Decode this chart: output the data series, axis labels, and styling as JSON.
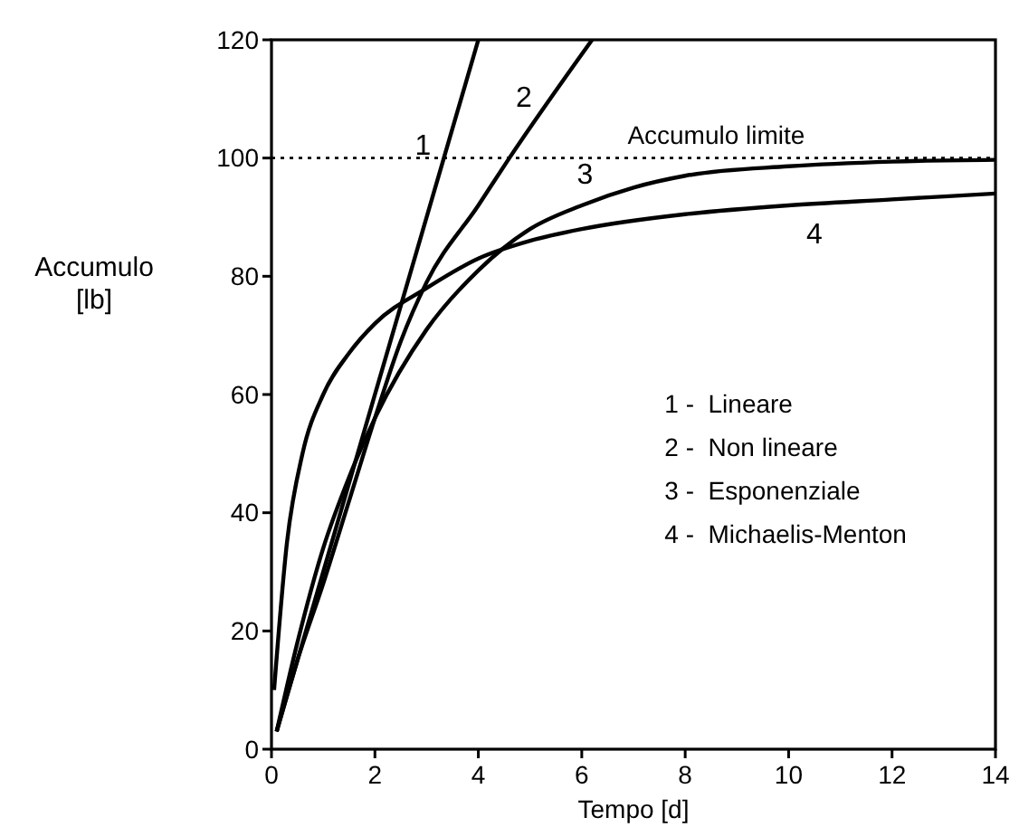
{
  "chart_data": {
    "type": "line",
    "xlabel": "Tempo [d]",
    "ylabel": "Accumulo [lb]",
    "xlim": [
      0,
      14
    ],
    "ylim": [
      0,
      120
    ],
    "xticks": [
      0,
      2,
      4,
      6,
      8,
      10,
      12,
      14
    ],
    "yticks": [
      0,
      20,
      40,
      60,
      80,
      100,
      120
    ],
    "grid": false,
    "marker": "none",
    "line_style": "solid",
    "series": [
      {
        "name": "1",
        "color": "#000000",
        "x": [
          0.1,
          4.0
        ],
        "values": [
          3,
          120
        ]
      },
      {
        "name": "2",
        "color": "#000000",
        "x": [
          0.1,
          0.5,
          1,
          1.5,
          2,
          2.5,
          3,
          4,
          4.6,
          6.2
        ],
        "values": [
          3,
          15,
          28,
          42,
          56,
          69,
          79,
          92,
          100,
          120
        ]
      },
      {
        "name": "3",
        "color": "#000000",
        "x": [
          0.1,
          0.5,
          1,
          1.5,
          2,
          3,
          4,
          5,
          6,
          7,
          8,
          10,
          12,
          14
        ],
        "values": [
          3,
          18,
          34,
          46,
          56,
          71,
          81,
          88,
          92,
          95,
          97,
          98.6,
          99.4,
          99.7
        ]
      },
      {
        "name": "4",
        "color": "#000000",
        "x": [
          0.05,
          0.3,
          0.6,
          1,
          1.5,
          2,
          3,
          4,
          5,
          6,
          8,
          10,
          12,
          14
        ],
        "values": [
          10,
          35,
          50,
          60,
          67,
          72,
          78,
          83,
          86,
          88,
          90.5,
          92,
          93,
          94
        ]
      }
    ],
    "ref_lines": [
      {
        "axis": "y",
        "value": 100,
        "label": "Accumulo limite",
        "line_style": "dotted",
        "color": "#000000"
      }
    ],
    "annotations": [
      "1 -  Lineare",
      "2 -  Non lineare",
      "3 -  Esponenziale",
      "4 -  Michaelis-Menton"
    ]
  }
}
